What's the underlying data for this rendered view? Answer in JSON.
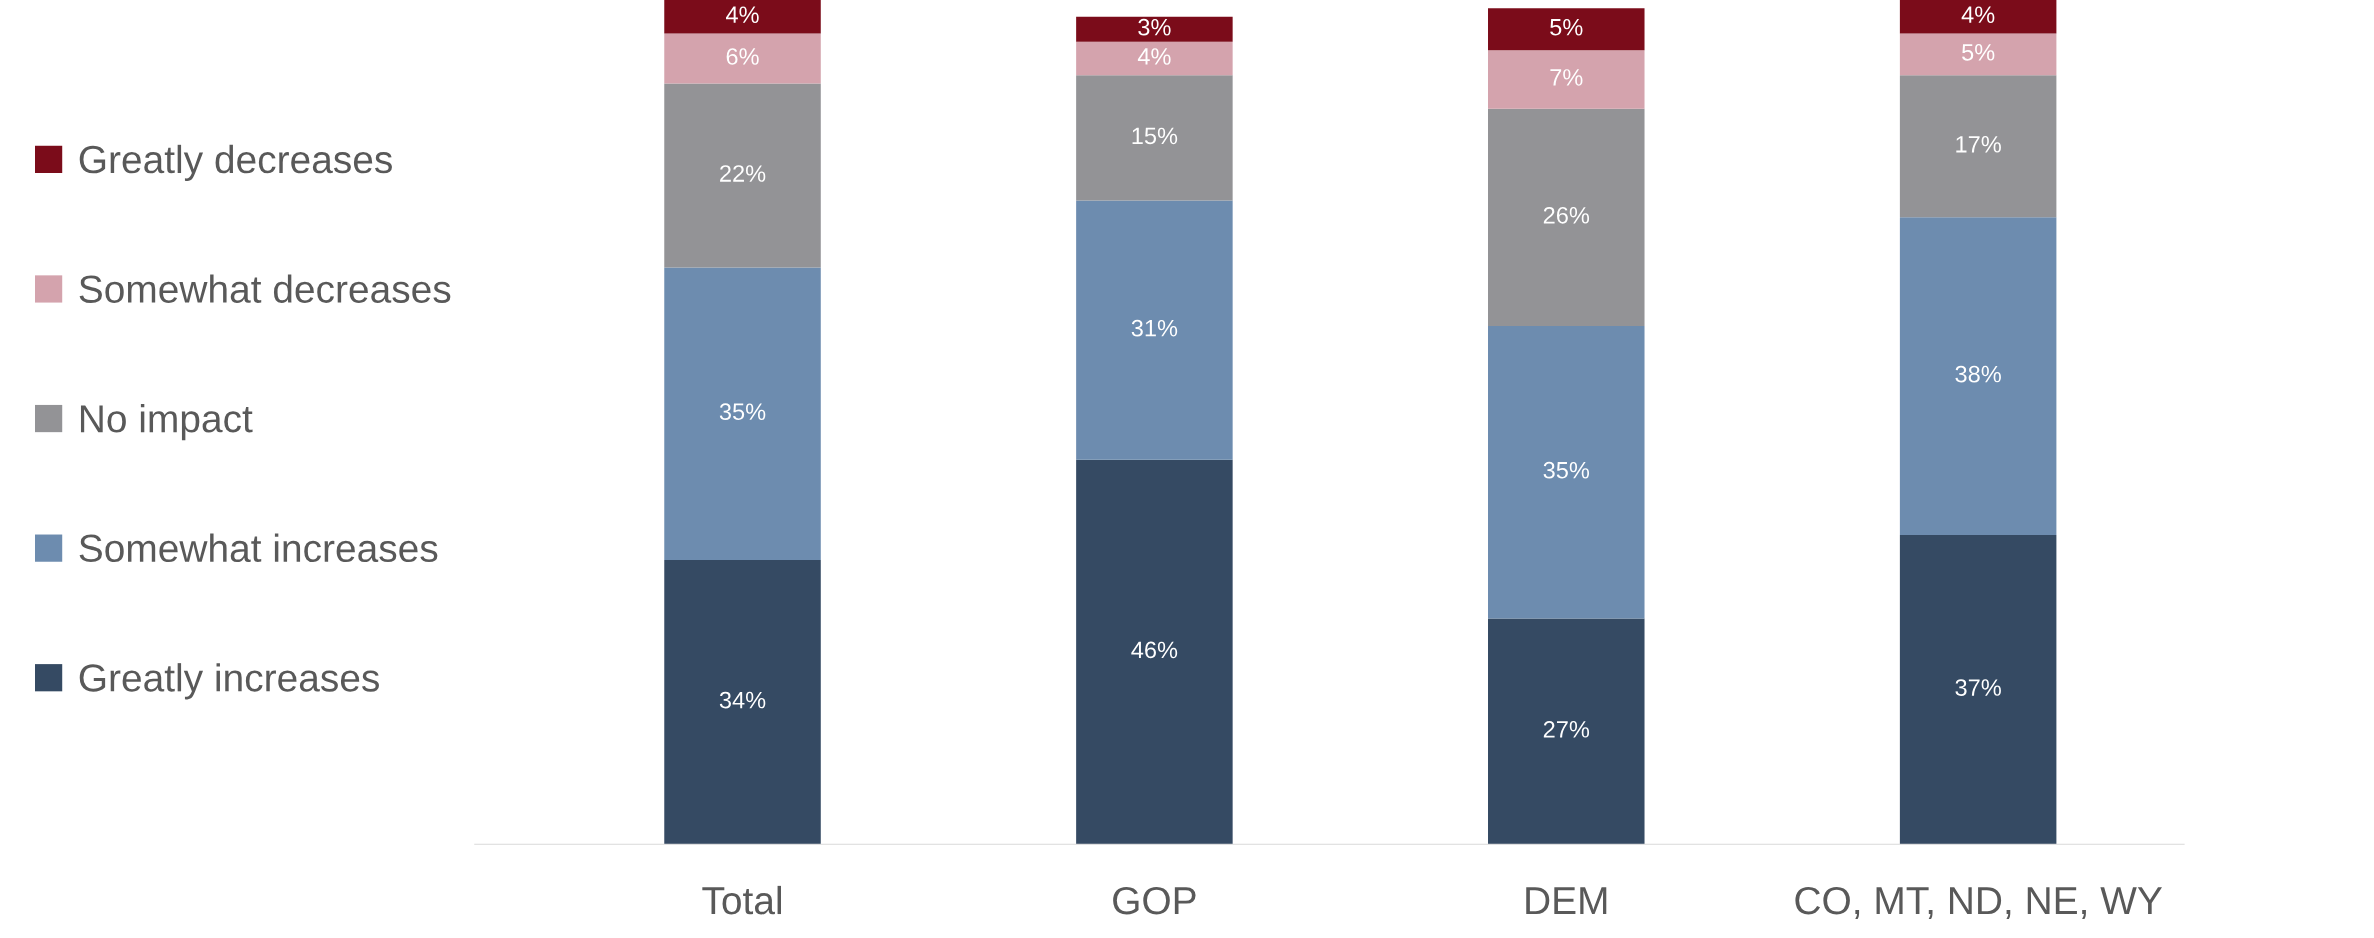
{
  "chart_data": {
    "type": "bar",
    "stacked": true,
    "legend": "left",
    "grid": false,
    "categories": [
      "Total",
      "GOP",
      "DEM",
      "CO, MT, ND, NE, WY"
    ],
    "series": [
      {
        "name": "Greatly increases",
        "color": "#354a63",
        "values": [
          34,
          46,
          27,
          37
        ],
        "value_labels": [
          "34%",
          "46%",
          "27%",
          "37%"
        ]
      },
      {
        "name": "Somewhat increases",
        "color": "#6d8caf",
        "values": [
          35,
          31,
          35,
          38
        ],
        "value_labels": [
          "35%",
          "31%",
          "35%",
          "38%"
        ]
      },
      {
        "name": "No impact",
        "color": "#939396",
        "values": [
          22,
          15,
          26,
          17
        ],
        "value_labels": [
          "22%",
          "15%",
          "26%",
          "17%"
        ]
      },
      {
        "name": "Somewhat decreases",
        "color": "#d4a3ad",
        "values": [
          6,
          4,
          7,
          5
        ],
        "value_labels": [
          "6%",
          "4%",
          "7%",
          "5%"
        ]
      },
      {
        "name": "Greatly decreases",
        "color": "#7b0c1a",
        "values": [
          4,
          3,
          5,
          4
        ],
        "value_labels": [
          "4%",
          "3%",
          "5%",
          "4%"
        ]
      }
    ]
  }
}
